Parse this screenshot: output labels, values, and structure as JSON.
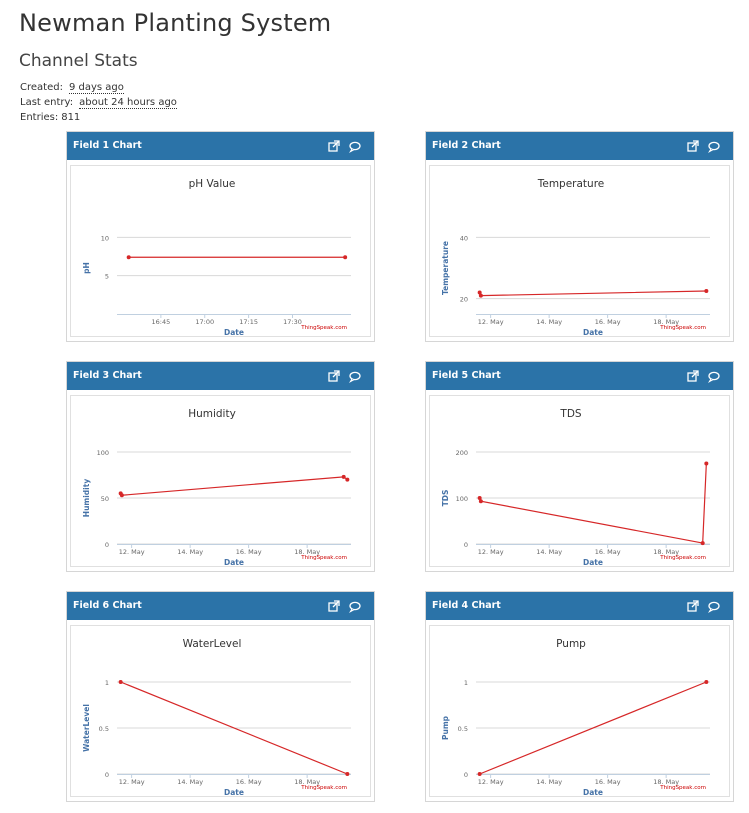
{
  "page": {
    "title": "Newman Planting System",
    "section_title": "Channel Stats",
    "stats": {
      "created_label": "Created:",
      "created_value": "9 days ago",
      "last_entry_label": "Last entry:",
      "last_entry_value": "about 24 hours ago",
      "entries_label": "Entries:",
      "entries_value": "811"
    }
  },
  "colors": {
    "header": "#2b73a8",
    "line": "#d62728",
    "axis_title": "#4572a7",
    "credit": "#cc0000"
  },
  "widgets": [
    {
      "title": "Field 1 Chart",
      "external_icon": "external-link-icon",
      "comment_icon": "comment-icon"
    },
    {
      "title": "Field 2 Chart",
      "external_icon": "external-link-icon",
      "comment_icon": "comment-icon"
    },
    {
      "title": "Field 3 Chart",
      "external_icon": "external-link-icon",
      "comment_icon": "comment-icon"
    },
    {
      "title": "Field 5 Chart",
      "external_icon": "external-link-icon",
      "comment_icon": "comment-icon"
    },
    {
      "title": "Field 6 Chart",
      "external_icon": "external-link-icon",
      "comment_icon": "comment-icon"
    },
    {
      "title": "Field 4 Chart",
      "external_icon": "external-link-icon",
      "comment_icon": "comment-icon"
    }
  ],
  "chart_data": [
    {
      "type": "line",
      "title": "pH Value",
      "xlabel": "Date",
      "ylabel": "pH",
      "x_type": "time",
      "xticks": [
        "16:45",
        "17:00",
        "17:15",
        "17:30"
      ],
      "xlim": [
        "16:30",
        "17:50"
      ],
      "ylim": [
        0,
        12
      ],
      "yticks": [
        5,
        10
      ],
      "points": [
        [
          "16:34",
          7.4
        ],
        [
          "17:48",
          7.4
        ]
      ],
      "credit": "ThingSpeak.com"
    },
    {
      "type": "line",
      "title": "Temperature",
      "xlabel": "Date",
      "ylabel": "Temperature",
      "xticks": [
        "12. May",
        "14. May",
        "16. May",
        "18. May"
      ],
      "xlim": [
        "2023-05-11 12:00",
        "2023-05-19 12:00"
      ],
      "ylim": [
        15,
        45
      ],
      "yticks": [
        20,
        40
      ],
      "points": [
        [
          "2023-05-11 15:00",
          22
        ],
        [
          "2023-05-11 16:00",
          21
        ],
        [
          "2023-05-19 09:00",
          22.5
        ]
      ],
      "credit": "ThingSpeak.com"
    },
    {
      "type": "line",
      "title": "Humidity",
      "xlabel": "Date",
      "ylabel": "Humidity",
      "xticks": [
        "12. May",
        "14. May",
        "16. May",
        "18. May"
      ],
      "xlim": [
        "2023-05-11 12:00",
        "2023-05-19 12:00"
      ],
      "ylim": [
        0,
        100
      ],
      "yticks": [
        0,
        50,
        100
      ],
      "points": [
        [
          "2023-05-11 15:00",
          55
        ],
        [
          "2023-05-11 16:00",
          53
        ],
        [
          "2023-05-19 06:00",
          73
        ],
        [
          "2023-05-19 09:00",
          70
        ]
      ],
      "credit": "ThingSpeak.com"
    },
    {
      "type": "line",
      "title": "TDS",
      "xlabel": "Date",
      "ylabel": "TDS",
      "xticks": [
        "12. May",
        "14. May",
        "16. May",
        "18. May"
      ],
      "xlim": [
        "2023-05-11 12:00",
        "2023-05-19 12:00"
      ],
      "ylim": [
        0,
        200
      ],
      "yticks": [
        0,
        100,
        200
      ],
      "points": [
        [
          "2023-05-11 15:00",
          100
        ],
        [
          "2023-05-11 16:00",
          93
        ],
        [
          "2023-05-19 06:00",
          2
        ],
        [
          "2023-05-19 09:00",
          175
        ]
      ],
      "credit": "ThingSpeak.com"
    },
    {
      "type": "line",
      "title": "WaterLevel",
      "xlabel": "Date",
      "ylabel": "WaterLevel",
      "xticks": [
        "12. May",
        "14. May",
        "16. May",
        "18. May"
      ],
      "xlim": [
        "2023-05-11 12:00",
        "2023-05-19 12:00"
      ],
      "ylim": [
        0,
        1
      ],
      "yticks": [
        0,
        0.5,
        1
      ],
      "points": [
        [
          "2023-05-11 15:00",
          1
        ],
        [
          "2023-05-19 09:00",
          0
        ]
      ],
      "credit": "ThingSpeak.com"
    },
    {
      "type": "line",
      "title": "Pump",
      "xlabel": "Date",
      "ylabel": "Pump",
      "xticks": [
        "12. May",
        "14. May",
        "16. May",
        "18. May"
      ],
      "xlim": [
        "2023-05-11 12:00",
        "2023-05-19 12:00"
      ],
      "ylim": [
        0,
        1
      ],
      "yticks": [
        0,
        0.5,
        1
      ],
      "points": [
        [
          "2023-05-11 15:00",
          0
        ],
        [
          "2023-05-19 09:00",
          1
        ]
      ],
      "credit": "ThingSpeak.com"
    }
  ]
}
